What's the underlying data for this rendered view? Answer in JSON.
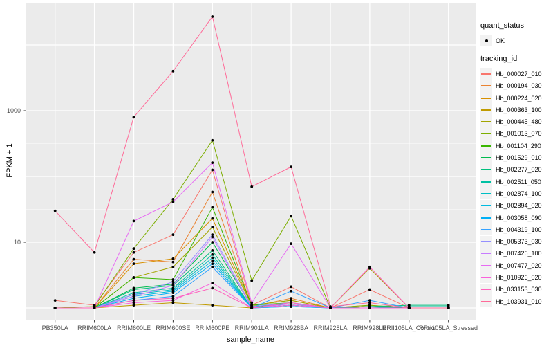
{
  "figure": {
    "background_color": "#FFFFFF",
    "panel_color": "#EBEBEB",
    "gridline_color": "#FFFFFF",
    "tick_label_color": "#4D4D4D"
  },
  "legend": {
    "quant_status_title": "quant_status",
    "quant_status_items": [
      {
        "label": "OK",
        "marker": "black-point"
      }
    ],
    "tracking_id_title": "tracking_id"
  },
  "chart_data": {
    "type": "line",
    "title": "",
    "x_label": "sample_name",
    "y_label": "FPKM + 1",
    "y_scale": "log10",
    "y_ticks": [
      10,
      1000
    ],
    "y_major_gridlines": [
      1,
      10,
      100,
      1000,
      10000
    ],
    "y_minor_gridlines": [
      3.162,
      31.62,
      316.2,
      3162,
      31620
    ],
    "ylim": [
      0.8,
      40000
    ],
    "grid": true,
    "legend_position": "right",
    "point_marker": "black-dot",
    "categories": [
      "PB350LA",
      "RRIM600LA",
      "RRIM600LE",
      "RRIM600SE",
      "RRIM600PE",
      "RRIM901LA",
      "RRIM928BA",
      "RRIM928LA",
      "RRIM928LE",
      "RRII105LA_Control",
      "RRII105LA_Stressed"
    ],
    "series": [
      {
        "name": "Hb_000027_010",
        "color": "#F8766D",
        "values": [
          1.3,
          1.1,
          7,
          13,
          126,
          1.1,
          2.1,
          1,
          1.9,
          1,
          1
        ]
      },
      {
        "name": "Hb_000194_030",
        "color": "#EA8331",
        "values": [
          1,
          1,
          5.5,
          5,
          58,
          1.05,
          1.4,
          1,
          1.1,
          1,
          1
        ]
      },
      {
        "name": "Hb_000224_020",
        "color": "#D89000",
        "values": [
          1,
          1,
          4.7,
          5.6,
          23,
          1.1,
          1.3,
          1,
          1.05,
          1,
          1
        ]
      },
      {
        "name": "Hb_000363_100",
        "color": "#C09B00",
        "values": [
          1,
          1,
          1.1,
          1.2,
          1.1,
          1,
          1.1,
          1,
          1.05,
          1,
          1
        ]
      },
      {
        "name": "Hb_000445_480",
        "color": "#A3A500",
        "values": [
          1,
          1,
          2.9,
          4.2,
          17,
          1.1,
          1.3,
          1,
          4.0,
          1,
          1
        ]
      },
      {
        "name": "Hb_001013_070",
        "color": "#7CAE00",
        "values": [
          1,
          1.05,
          8,
          45,
          355,
          2.6,
          25,
          1,
          1.1,
          1,
          1
        ]
      },
      {
        "name": "Hb_001104_290",
        "color": "#39B600",
        "values": [
          1,
          1,
          2.9,
          2.7,
          34,
          1.1,
          1.2,
          1,
          1.05,
          1,
          1
        ]
      },
      {
        "name": "Hb_001529_010",
        "color": "#00BB4E",
        "values": [
          1,
          1,
          2.0,
          2.3,
          10,
          1.05,
          1.15,
          1,
          1.05,
          1,
          1
        ]
      },
      {
        "name": "Hb_002277_020",
        "color": "#00BF7D",
        "values": [
          1,
          1,
          1.9,
          2.2,
          7.5,
          1,
          1.1,
          1,
          1.05,
          1.1,
          1.1
        ]
      },
      {
        "name": "Hb_002511_050",
        "color": "#00C1A3",
        "values": [
          1,
          1,
          1.7,
          2.0,
          6.5,
          1,
          1.1,
          1,
          1,
          1.05,
          1.05
        ]
      },
      {
        "name": "Hb_002874_100",
        "color": "#00BFC4",
        "values": [
          1,
          1,
          1.6,
          1.9,
          5.8,
          1,
          1.1,
          1,
          1,
          1,
          1
        ]
      },
      {
        "name": "Hb_002894_020",
        "color": "#00BAE0",
        "values": [
          1,
          1,
          1.5,
          1.8,
          5.2,
          1,
          1.05,
          1,
          1,
          1,
          1
        ]
      },
      {
        "name": "Hb_003058_090",
        "color": "#00B0F6",
        "values": [
          1,
          1,
          1.4,
          1.7,
          4.7,
          1,
          1.05,
          1,
          1,
          1,
          1
        ]
      },
      {
        "name": "Hb_004319_100",
        "color": "#35A2FF",
        "values": [
          1,
          1,
          1.3,
          1.5,
          4.2,
          1,
          1.8,
          1,
          1.3,
          1,
          1
        ]
      },
      {
        "name": "Hb_005373_030",
        "color": "#9590FF",
        "values": [
          1,
          1,
          1.6,
          2.5,
          13,
          1.05,
          1.2,
          1,
          1,
          1,
          1
        ]
      },
      {
        "name": "Hb_007426_100",
        "color": "#C77CFF",
        "values": [
          1,
          1,
          1.5,
          2.2,
          12,
          1,
          1.15,
          1,
          1,
          1,
          1
        ]
      },
      {
        "name": "Hb_007477_020",
        "color": "#E76BF3",
        "values": [
          1,
          1,
          21,
          41,
          162,
          1.2,
          9.5,
          1,
          1,
          1,
          1
        ]
      },
      {
        "name": "Hb_010926_020",
        "color": "#FA62DB",
        "values": [
          1,
          1,
          1.2,
          1.3,
          2.4,
          1,
          1.1,
          1,
          1,
          1,
          1
        ]
      },
      {
        "name": "Hb_033153_030",
        "color": "#FF62BC",
        "values": [
          1,
          1,
          1.3,
          1.4,
          2.0,
          1,
          1.2,
          1,
          4.2,
          1,
          1
        ]
      },
      {
        "name": "Hb_103931_010",
        "color": "#FF6A98",
        "values": [
          30,
          7,
          800,
          4000,
          27000,
          70,
          140,
          1.05,
          1.2,
          1,
          1
        ]
      }
    ]
  }
}
